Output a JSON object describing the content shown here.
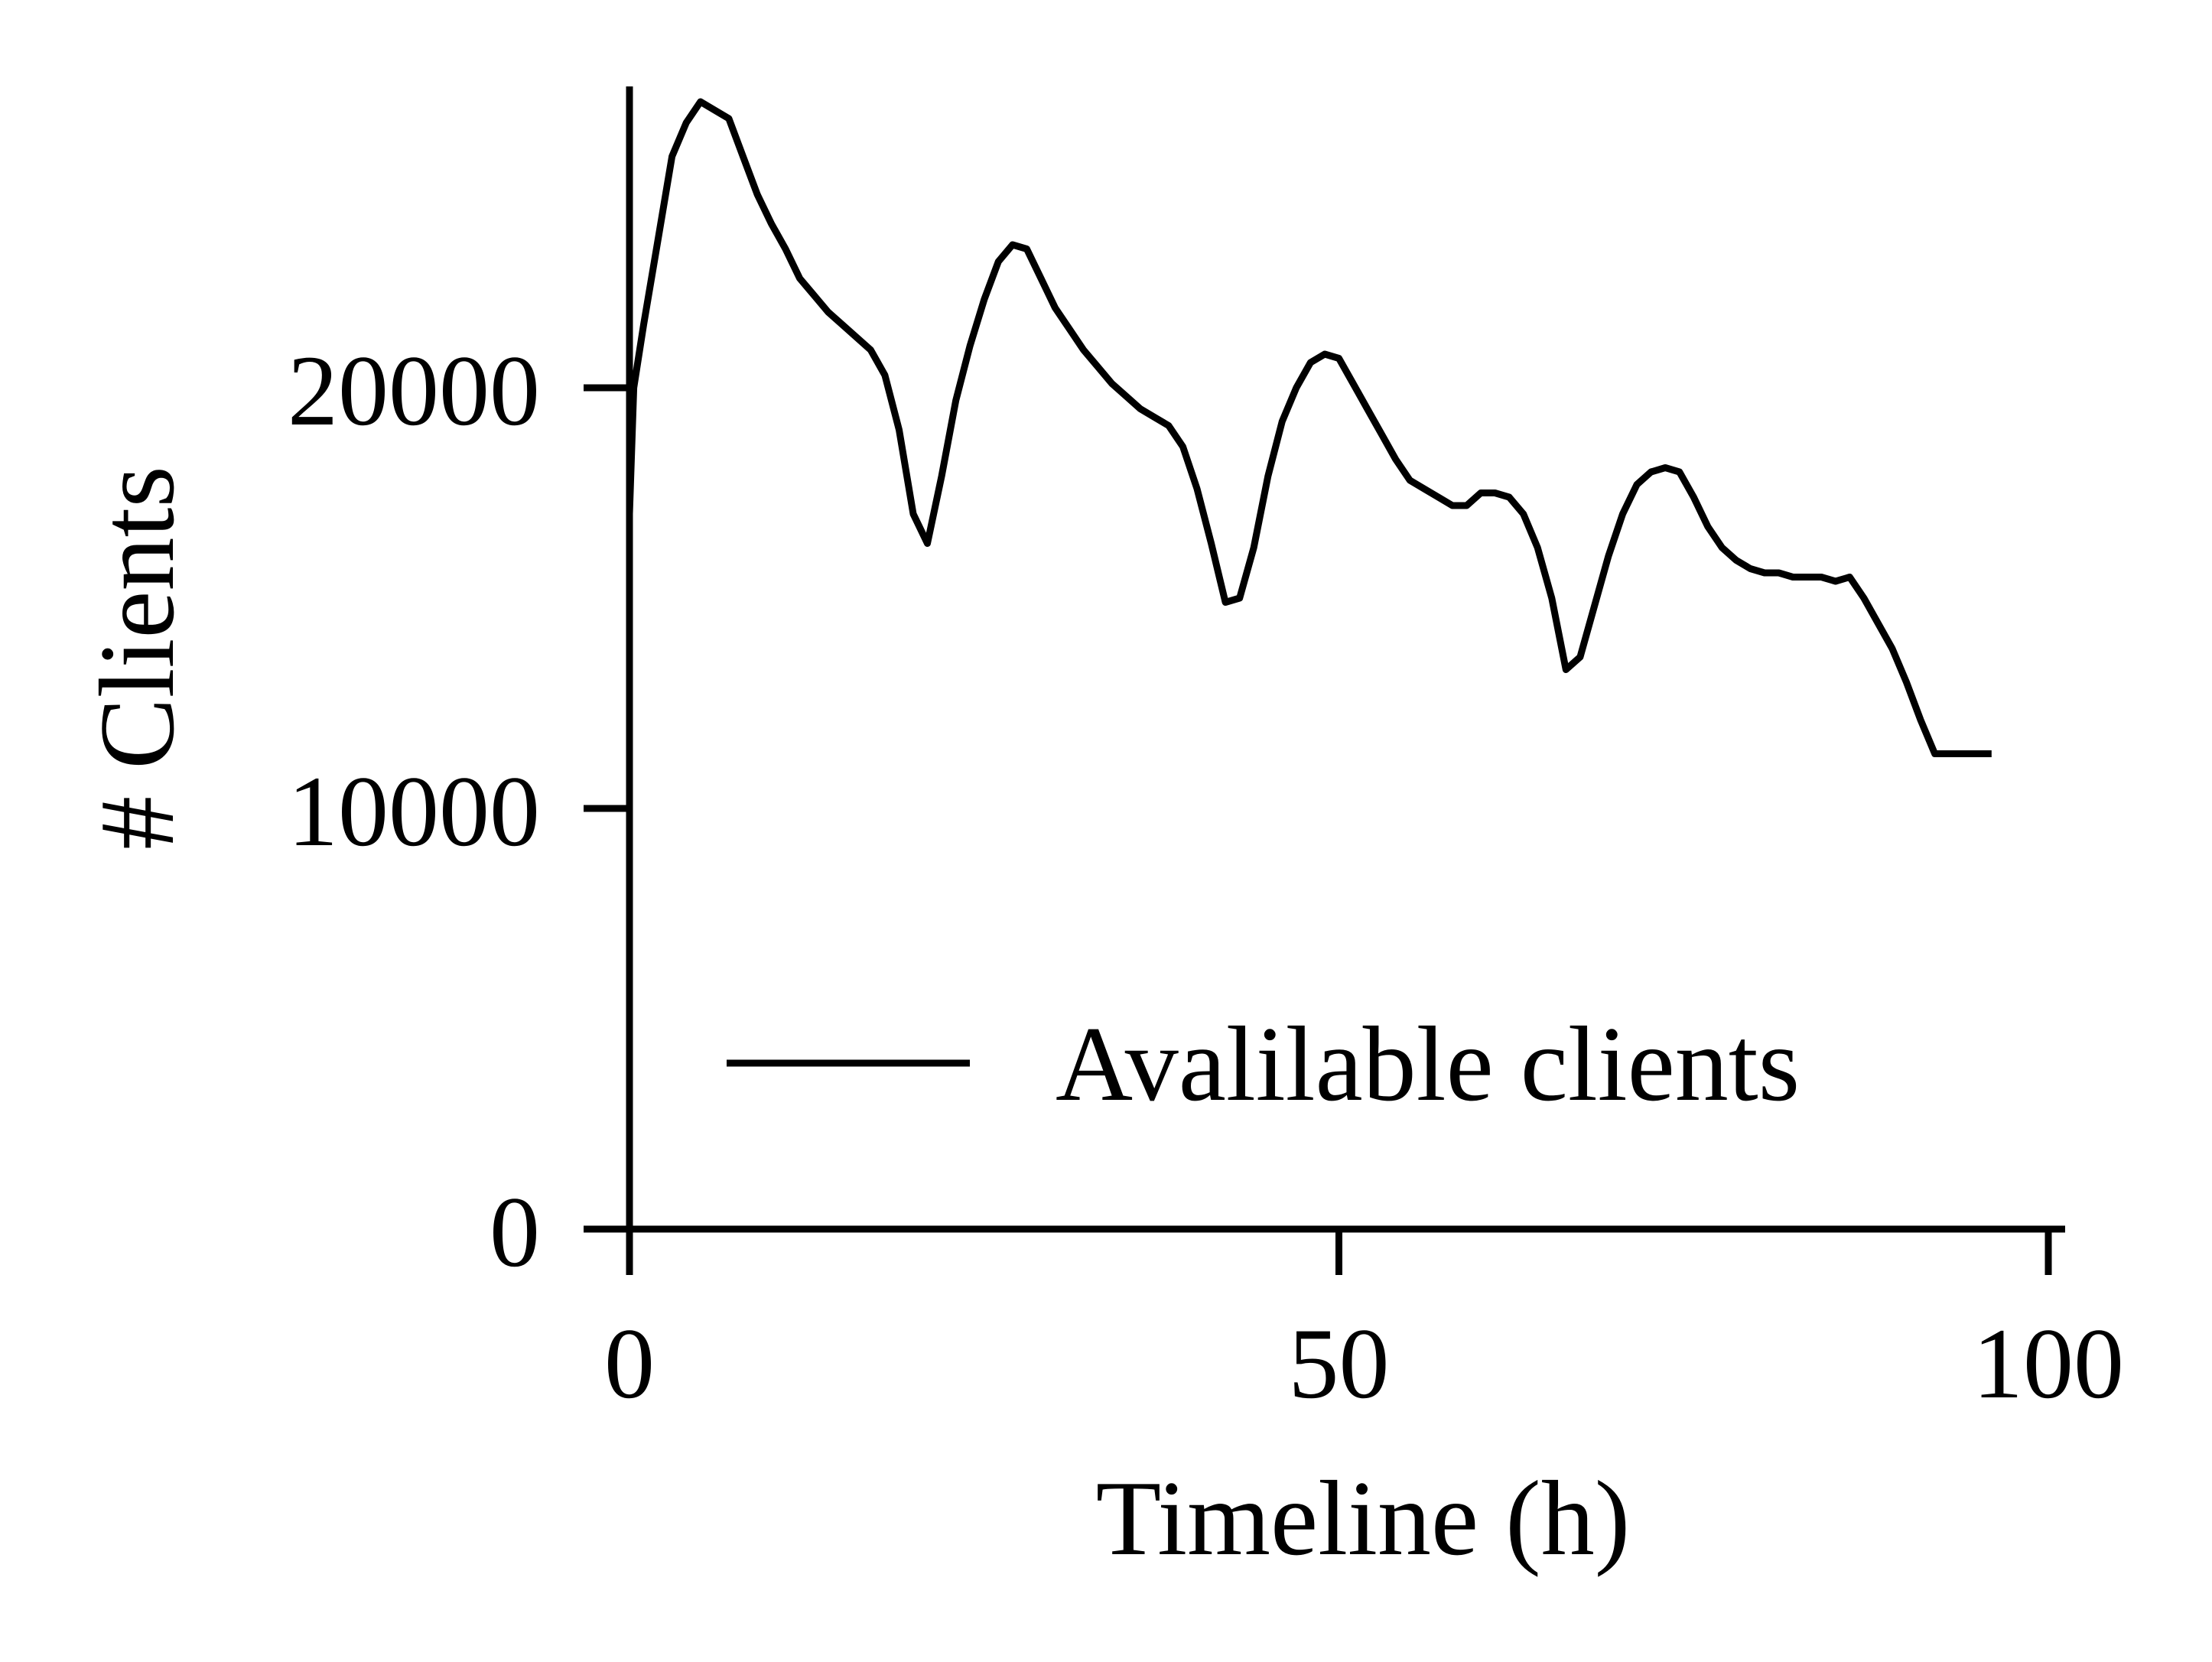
{
  "chart_data": {
    "type": "line",
    "title": "",
    "xlabel": "Timeline (h)",
    "ylabel": "# Clients",
    "xlim": [
      0,
      100
    ],
    "ylim": [
      0,
      27500
    ],
    "x_ticks": [
      0,
      50,
      100
    ],
    "y_ticks": [
      0,
      10000,
      20000
    ],
    "x_tick_labels": [
      "0",
      "50",
      "100"
    ],
    "y_tick_labels": [
      "0",
      "10000",
      "20000"
    ],
    "grid": false,
    "legend_position": "lower-right",
    "line_color": "#000000",
    "series": [
      {
        "name": "Avalilable clients",
        "x": [
          0,
          0.3,
          1,
          2,
          3,
          4,
          5,
          6,
          7,
          8,
          9,
          10,
          11,
          12,
          13,
          14,
          15,
          16,
          17,
          18,
          19,
          20,
          21,
          22,
          23,
          24,
          25,
          26,
          27,
          28,
          29,
          30,
          31,
          32,
          33,
          34,
          35,
          36,
          37,
          38,
          39,
          40,
          41,
          42,
          43,
          44,
          45,
          46,
          47,
          48,
          49,
          50,
          51,
          52,
          53,
          54,
          55,
          56,
          57,
          58,
          59,
          60,
          61,
          62,
          63,
          64,
          65,
          66,
          67,
          68,
          69,
          70,
          71,
          72,
          73,
          74,
          75,
          76,
          77,
          78,
          79,
          80,
          81,
          82,
          83,
          84,
          85,
          86,
          87,
          88,
          89,
          90,
          91,
          92,
          93,
          94,
          95,
          96
        ],
        "values": [
          17000,
          20000,
          21500,
          23500,
          25500,
          26300,
          26800,
          26600,
          26400,
          25500,
          24600,
          23900,
          23300,
          22600,
          22200,
          21800,
          21500,
          21200,
          20900,
          20300,
          19000,
          17000,
          16300,
          17900,
          19700,
          21000,
          22100,
          23000,
          23400,
          23300,
          22600,
          21900,
          21400,
          20900,
          20500,
          20100,
          19800,
          19500,
          19300,
          19100,
          18600,
          17600,
          16300,
          14900,
          15000,
          16200,
          17900,
          19200,
          20000,
          20600,
          20800,
          20700,
          20100,
          19500,
          18900,
          18300,
          17800,
          17600,
          17400,
          17200,
          17200,
          17500,
          17500,
          17400,
          17000,
          16200,
          15000,
          13300,
          13600,
          14800,
          16000,
          17000,
          17700,
          18000,
          18100,
          18000,
          17400,
          16700,
          16200,
          15900,
          15700,
          15600,
          15600,
          15500,
          15500,
          15500,
          15400,
          15500,
          15000,
          14400,
          13800,
          13000,
          12100,
          11300,
          11300,
          11300,
          11300,
          11300
        ]
      }
    ]
  }
}
